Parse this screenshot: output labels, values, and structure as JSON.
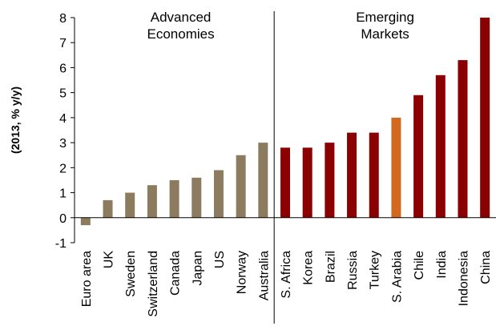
{
  "chart_data": {
    "type": "bar",
    "ylabel": "(2013, % y/y)",
    "ylim": [
      -1,
      8
    ],
    "yticks": [
      -1,
      0,
      1,
      2,
      3,
      4,
      5,
      6,
      7,
      8
    ],
    "grid": false,
    "groups": [
      {
        "label_line1": "Advanced",
        "label_line2": "Economies",
        "start": 0,
        "end": 9
      },
      {
        "label_line1": "Emerging",
        "label_line2": "Markets",
        "start": 9,
        "end": 19
      }
    ],
    "categories": [
      "Euro area",
      "UK",
      "Sweden",
      "Switzerland",
      "Canada",
      "Japan",
      "US",
      "Norway",
      "Australia",
      "S. Africa",
      "Korea",
      "Brazil",
      "Russia",
      "Turkey",
      "S. Arabia",
      "Chile",
      "India",
      "Indonesia",
      "China"
    ],
    "values": [
      -0.3,
      0.7,
      1.0,
      1.3,
      1.5,
      1.6,
      1.9,
      2.5,
      3.0,
      2.8,
      2.8,
      3.0,
      3.4,
      3.4,
      4.0,
      4.9,
      5.7,
      6.3,
      8.0
    ],
    "bar_colors": [
      "#8C7B5F",
      "#8C7B5F",
      "#8C7B5F",
      "#8C7B5F",
      "#8C7B5F",
      "#8C7B5F",
      "#8C7B5F",
      "#8C7B5F",
      "#8C7B5F",
      "#8B0000",
      "#8B0000",
      "#8B0000",
      "#8B0000",
      "#8B0000",
      "#D2691E",
      "#8B0000",
      "#8B0000",
      "#8B0000",
      "#8B0000"
    ]
  }
}
